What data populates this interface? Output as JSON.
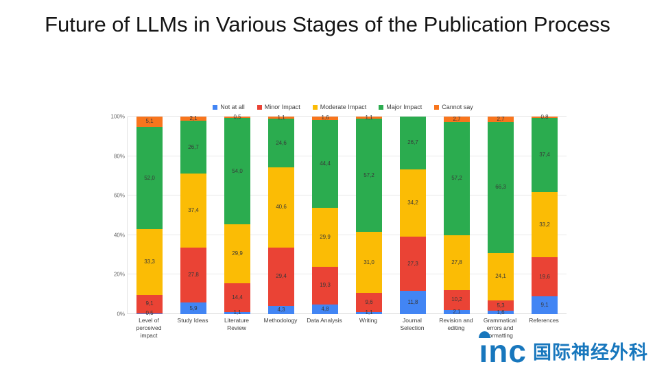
{
  "page": {
    "title": "Future of LLMs in Various Stages of the Publication Process"
  },
  "watermark": {
    "logo_text": "ınc",
    "cn_text": "国际神经外科",
    "color": "#1877BD"
  },
  "chart_data": {
    "type": "bar",
    "stacked": true,
    "percent": true,
    "title": "Future of LLMs in Various Stages of the Publication Process",
    "decimal_separator": ",",
    "grid": true,
    "legend_position": "top",
    "ylim": [
      0,
      100
    ],
    "y_ticks": [
      "0%",
      "20%",
      "40%",
      "60%",
      "80%",
      "100%"
    ],
    "categories": [
      "Level of perceived impact",
      "Study Ideas",
      "Literature Review",
      "Methodology",
      "Data Analysis",
      "Writing",
      "Journal Selection",
      "Revision and editing",
      "Grammatical errors and formatting",
      "References"
    ],
    "series": [
      {
        "name": "Not at all",
        "color": "#4285F4",
        "values": [
          0.5,
          5.9,
          1.1,
          4.3,
          4.8,
          1.1,
          11.8,
          2.1,
          1.6,
          9.1
        ]
      },
      {
        "name": "Minor Impact",
        "color": "#EA4335",
        "values": [
          9.1,
          27.8,
          14.4,
          29.4,
          19.3,
          9.6,
          27.3,
          10.2,
          5.3,
          19.6
        ]
      },
      {
        "name": "Moderate Impact",
        "color": "#FBBC05",
        "values": [
          33.3,
          37.4,
          29.9,
          40.6,
          29.9,
          31.0,
          34.2,
          27.8,
          24.1,
          33.2
        ]
      },
      {
        "name": "Major Impact",
        "color": "#2BAC4F",
        "values": [
          52.0,
          26.7,
          54.0,
          24.6,
          44.4,
          57.2,
          26.7,
          57.2,
          66.3,
          37.4
        ]
      },
      {
        "name": "Cannot say",
        "color": "#F8751D",
        "values": [
          5.1,
          2.1,
          0.5,
          1.1,
          1.6,
          1.1,
          0,
          2.7,
          2.7,
          0.8
        ]
      }
    ]
  }
}
